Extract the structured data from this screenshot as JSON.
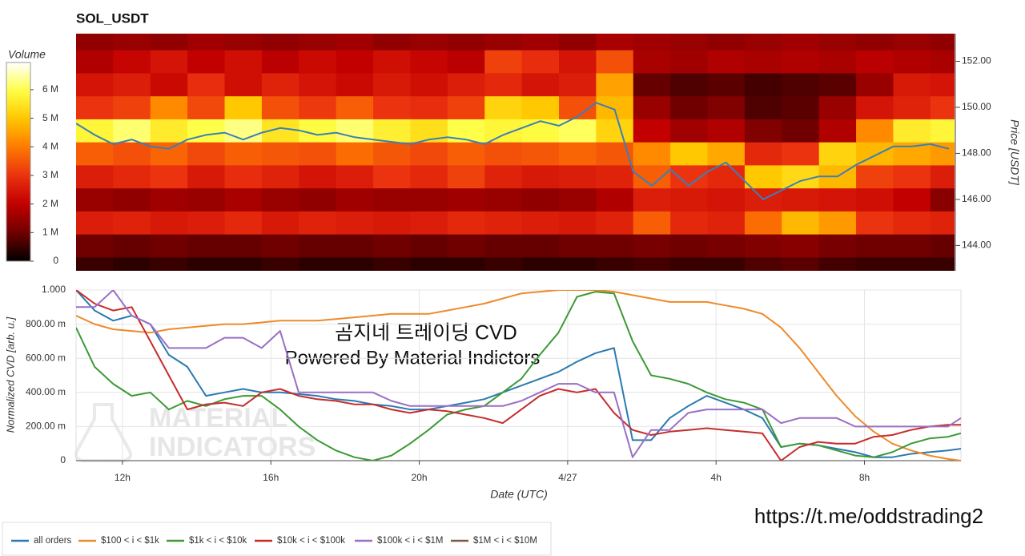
{
  "chart_data": [
    {
      "type": "heatmap",
      "title": "SOL_USDT",
      "colorbar_label": "Volume",
      "y_label": "Price [USDT]",
      "x_bins": [
        10.75,
        11.75,
        12.75,
        13.75,
        14.75,
        15.75,
        16.75,
        17.75,
        18.75,
        19.75,
        20.75,
        21.75,
        22.75,
        23.75,
        24.75,
        25.75,
        26.75,
        27.75,
        28.75,
        29.75,
        30.75,
        31.75,
        32.75,
        33.75,
        34.75
      ],
      "xlim": [
        10.75,
        34.4
      ],
      "price_bins": [
        142.5,
        143.5,
        144.5,
        145.5,
        146.5,
        147.5,
        148.5,
        149.5,
        150.5,
        151.5,
        152.5,
        153.5
      ],
      "ylim": [
        142.9,
        153.2
      ],
      "yticks": [
        {
          "value": 144,
          "label": "144.00"
        },
        {
          "value": 146,
          "label": "146.00"
        },
        {
          "value": 148,
          "label": "148.00"
        },
        {
          "value": 150,
          "label": "150.00"
        },
        {
          "value": 152,
          "label": "152.00"
        }
      ],
      "clim": [
        0,
        6950000
      ],
      "cticks": [
        0,
        {
          "value": 1000000,
          "label": "1 M"
        },
        {
          "value": 2000000,
          "label": "2 M"
        },
        {
          "value": 3000000,
          "label": "3 M"
        },
        {
          "value": 4000000,
          "label": "4 M"
        },
        {
          "value": 5000000,
          "label": "5 M"
        },
        {
          "value": 6000000,
          "label": "6 M"
        }
      ],
      "values": [
        [
          500000,
          400000,
          500000,
          400000,
          400000,
          500000,
          400000,
          400000,
          500000,
          400000,
          400000,
          500000,
          400000,
          400000,
          500000,
          600000,
          500000,
          500000,
          700000,
          800000,
          600000,
          500000,
          500000,
          500000
        ],
        [
          1000000,
          900000,
          1000000,
          900000,
          900000,
          1000000,
          900000,
          900000,
          1000000,
          900000,
          1000000,
          900000,
          900000,
          1000000,
          1000000,
          1100000,
          1000000,
          1100000,
          1200000,
          1300000,
          1100000,
          1000000,
          1000000,
          900000
        ],
        [
          2600000,
          2700000,
          2500000,
          2600000,
          2800000,
          2500000,
          2700000,
          2600000,
          2500000,
          2600000,
          2800000,
          2700000,
          2600000,
          2500000,
          2700000,
          3600000,
          2800000,
          2700000,
          3800000,
          4800000,
          4400000,
          3000000,
          2800000,
          2700000
        ],
        [
          1500000,
          1400000,
          1600000,
          1500000,
          1700000,
          1500000,
          1400000,
          1600000,
          1500000,
          1500000,
          1600000,
          1500000,
          1400000,
          1500000,
          1800000,
          2600000,
          2500000,
          2400000,
          2600000,
          2500000,
          2400000,
          2300000,
          2000000,
          1300000
        ],
        [
          2600000,
          2800000,
          3000000,
          2500000,
          2900000,
          2700000,
          2400000,
          2600000,
          3000000,
          2800000,
          3200000,
          2700000,
          2500000,
          2600000,
          2700000,
          3600000,
          3000000,
          2800000,
          5000000,
          5300000,
          4800000,
          3200000,
          3000000,
          2600000
        ],
        [
          3600000,
          3400000,
          3700000,
          3300000,
          3600000,
          3500000,
          3400000,
          3800000,
          3500000,
          3300000,
          3600000,
          3400000,
          3500000,
          3700000,
          3500000,
          4200000,
          5000000,
          4600000,
          2800000,
          3000000,
          5200000,
          4800000,
          4600000,
          4400000
        ],
        [
          5800000,
          6200000,
          5600000,
          6000000,
          6300000,
          5500000,
          5900000,
          6200000,
          5700000,
          5400000,
          6000000,
          5800000,
          5900000,
          6100000,
          5200000,
          2000000,
          1600000,
          1800000,
          1200000,
          1000000,
          1800000,
          4200000,
          5600000,
          5800000
        ],
        [
          3000000,
          3200000,
          4200000,
          3300000,
          5000000,
          3400000,
          3100000,
          3600000,
          3000000,
          2900000,
          3200000,
          5200000,
          5000000,
          3400000,
          4800000,
          1500000,
          1000000,
          1200000,
          700000,
          800000,
          1500000,
          2400000,
          2700000,
          3000000
        ],
        [
          2400000,
          2600000,
          2200000,
          2900000,
          2300000,
          2700000,
          2400000,
          2200000,
          2500000,
          2300000,
          2600000,
          2800000,
          2400000,
          2600000,
          4500000,
          900000,
          700000,
          800000,
          600000,
          700000,
          800000,
          1500000,
          2500000,
          2400000
        ],
        [
          1800000,
          2100000,
          2400000,
          2000000,
          2300000,
          1900000,
          2200000,
          2000000,
          2300000,
          2100000,
          1900000,
          3200000,
          2900000,
          2400000,
          3400000,
          1700000,
          1600000,
          1800000,
          1700000,
          1800000,
          1700000,
          1900000,
          1800000,
          1700000
        ],
        [
          1400000,
          1500000,
          1400000,
          1600000,
          1500000,
          1400000,
          1500000,
          1600000,
          1400000,
          1500000,
          1400000,
          1500000,
          1600000,
          1400000,
          1700000,
          1600000,
          1500000,
          1400000,
          1500000,
          1600000,
          1500000,
          1400000,
          1500000,
          1400000
        ]
      ],
      "price_line": {
        "color": "#3b7fb8",
        "x": [
          10.75,
          11.25,
          11.75,
          12.25,
          12.75,
          13.25,
          13.75,
          14.25,
          14.75,
          15.25,
          15.75,
          16.25,
          16.75,
          17.25,
          17.75,
          18.25,
          18.75,
          19.25,
          19.75,
          20.25,
          20.75,
          21.25,
          21.75,
          22.25,
          22.75,
          23.25,
          23.75,
          24.25,
          24.75,
          25.25,
          25.75,
          26.25,
          26.75,
          27.25,
          27.75,
          28.25,
          28.75,
          29.25,
          29.75,
          30.25,
          30.75,
          31.25,
          31.75,
          32.25,
          32.75,
          33.25,
          33.75,
          34.25
        ],
        "values": [
          149.3,
          148.8,
          148.4,
          148.6,
          148.3,
          148.2,
          148.6,
          148.8,
          148.9,
          148.6,
          148.9,
          149.1,
          149.0,
          148.8,
          148.9,
          148.7,
          148.6,
          148.5,
          148.4,
          148.6,
          148.7,
          148.6,
          148.4,
          148.8,
          149.1,
          149.4,
          149.2,
          149.6,
          150.2,
          149.9,
          147.2,
          146.6,
          147.3,
          146.6,
          147.2,
          147.6,
          146.8,
          146.0,
          146.4,
          146.8,
          147.0,
          147.0,
          147.5,
          147.9,
          148.3,
          148.3,
          148.4,
          148.2
        ]
      }
    },
    {
      "type": "line",
      "y_label": "Normalized CVD [arb. u.]",
      "x_label": "Date (UTC)",
      "x": [
        10.75,
        11.25,
        11.75,
        12.25,
        12.75,
        13.25,
        13.75,
        14.25,
        14.75,
        15.25,
        15.75,
        16.25,
        16.75,
        17.25,
        17.75,
        18.25,
        18.75,
        19.25,
        19.75,
        20.25,
        20.75,
        21.25,
        21.75,
        22.25,
        22.75,
        23.25,
        23.75,
        24.25,
        24.75,
        25.25,
        25.75,
        26.25,
        26.75,
        27.25,
        27.75,
        28.25,
        28.75,
        29.25,
        29.75,
        30.25,
        30.75,
        31.25,
        31.75,
        32.25,
        32.75,
        33.25,
        33.75,
        34.25,
        34.6
      ],
      "xlim": [
        10.75,
        34.6
      ],
      "xticks": [
        {
          "value": 12,
          "label": "12h"
        },
        {
          "value": 16,
          "label": "16h"
        },
        {
          "value": 20,
          "label": "20h"
        },
        {
          "value": 24,
          "label": "4/27"
        },
        {
          "value": 28,
          "label": "4h"
        },
        {
          "value": 32,
          "label": "8h"
        }
      ],
      "ylim": [
        0,
        1
      ],
      "yticks": [
        0,
        {
          "value": 0.2,
          "label": "200.00 m"
        },
        {
          "value": 0.4,
          "label": "400.00 m"
        },
        {
          "value": 0.6,
          "label": "600.00 m"
        },
        {
          "value": 0.8,
          "label": "800.00 m"
        },
        {
          "value": 1,
          "label": "1.000"
        }
      ],
      "grid": true,
      "series": [
        {
          "name": "all orders",
          "color": "#2a7ab0",
          "values": [
            1.0,
            0.88,
            0.82,
            0.85,
            0.8,
            0.62,
            0.55,
            0.38,
            0.4,
            0.42,
            0.4,
            0.4,
            0.39,
            0.38,
            0.36,
            0.35,
            0.33,
            0.32,
            0.3,
            0.3,
            0.32,
            0.34,
            0.36,
            0.4,
            0.44,
            0.48,
            0.52,
            0.58,
            0.63,
            0.66,
            0.12,
            0.12,
            0.25,
            0.32,
            0.38,
            0.34,
            0.3,
            0.25,
            0.08,
            0.1,
            0.09,
            0.07,
            0.05,
            0.02,
            0.02,
            0.04,
            0.05,
            0.06,
            0.07
          ]
        },
        {
          "name": "$100 < i < $1k",
          "color": "#ee8a2a",
          "values": [
            0.85,
            0.8,
            0.77,
            0.76,
            0.75,
            0.77,
            0.78,
            0.79,
            0.8,
            0.8,
            0.81,
            0.82,
            0.82,
            0.82,
            0.83,
            0.84,
            0.85,
            0.86,
            0.86,
            0.86,
            0.88,
            0.9,
            0.92,
            0.95,
            0.98,
            0.99,
            1.0,
            1.0,
            1.0,
            0.99,
            0.97,
            0.95,
            0.93,
            0.93,
            0.93,
            0.91,
            0.89,
            0.86,
            0.78,
            0.66,
            0.52,
            0.38,
            0.26,
            0.17,
            0.1,
            0.06,
            0.03,
            0.01,
            0.0
          ]
        },
        {
          "name": "$1k < i < $10k",
          "color": "#3c9a35",
          "values": [
            0.78,
            0.55,
            0.45,
            0.38,
            0.4,
            0.3,
            0.35,
            0.32,
            0.36,
            0.38,
            0.38,
            0.3,
            0.2,
            0.12,
            0.06,
            0.02,
            0.0,
            0.03,
            0.1,
            0.18,
            0.27,
            0.3,
            0.32,
            0.4,
            0.48,
            0.62,
            0.75,
            0.96,
            0.99,
            0.98,
            0.7,
            0.5,
            0.48,
            0.45,
            0.4,
            0.36,
            0.34,
            0.3,
            0.08,
            0.1,
            0.09,
            0.06,
            0.03,
            0.02,
            0.05,
            0.1,
            0.13,
            0.14,
            0.16
          ]
        },
        {
          "name": "$10k < i < $100k",
          "color": "#c62c2c",
          "values": [
            1.0,
            0.92,
            0.88,
            0.9,
            0.7,
            0.5,
            0.3,
            0.33,
            0.34,
            0.32,
            0.4,
            0.42,
            0.38,
            0.36,
            0.35,
            0.33,
            0.33,
            0.3,
            0.28,
            0.3,
            0.29,
            0.27,
            0.25,
            0.22,
            0.3,
            0.38,
            0.42,
            0.4,
            0.42,
            0.28,
            0.18,
            0.15,
            0.17,
            0.18,
            0.19,
            0.18,
            0.17,
            0.16,
            0.0,
            0.08,
            0.11,
            0.1,
            0.1,
            0.14,
            0.15,
            0.18,
            0.2,
            0.21,
            0.21
          ]
        },
        {
          "name": "$100k < i < $1M",
          "color": "#9a6fc4",
          "values": [
            0.9,
            0.9,
            1.0,
            0.85,
            0.8,
            0.66,
            0.66,
            0.66,
            0.72,
            0.72,
            0.66,
            0.76,
            0.4,
            0.4,
            0.4,
            0.4,
            0.4,
            0.35,
            0.32,
            0.32,
            0.32,
            0.32,
            0.32,
            0.32,
            0.35,
            0.4,
            0.45,
            0.45,
            0.4,
            0.4,
            0.02,
            0.18,
            0.18,
            0.28,
            0.3,
            0.3,
            0.3,
            0.3,
            0.22,
            0.25,
            0.25,
            0.25,
            0.2,
            0.2,
            0.2,
            0.2,
            0.2,
            0.2,
            0.25
          ]
        },
        {
          "name": "$1M < i < $10M",
          "color": "#7a5a4a",
          "values": [
            null,
            null,
            null,
            null,
            null,
            null,
            null,
            null,
            null,
            null,
            null,
            null,
            null,
            null,
            null,
            null,
            null,
            null,
            null,
            null,
            null,
            null,
            null,
            null,
            null,
            null,
            null,
            null,
            null,
            null,
            null,
            null,
            null,
            null,
            null,
            null,
            null,
            null,
            null,
            null,
            null,
            null,
            null,
            null,
            null,
            null,
            null,
            null,
            null
          ]
        }
      ]
    }
  ],
  "overlay_text": [
    "곰지네 트레이딩 CVD",
    "Powered By Material Indictors"
  ],
  "watermark": [
    "MATERIAL",
    "INDICATORS"
  ],
  "link": "https://t.me/oddstrading2"
}
